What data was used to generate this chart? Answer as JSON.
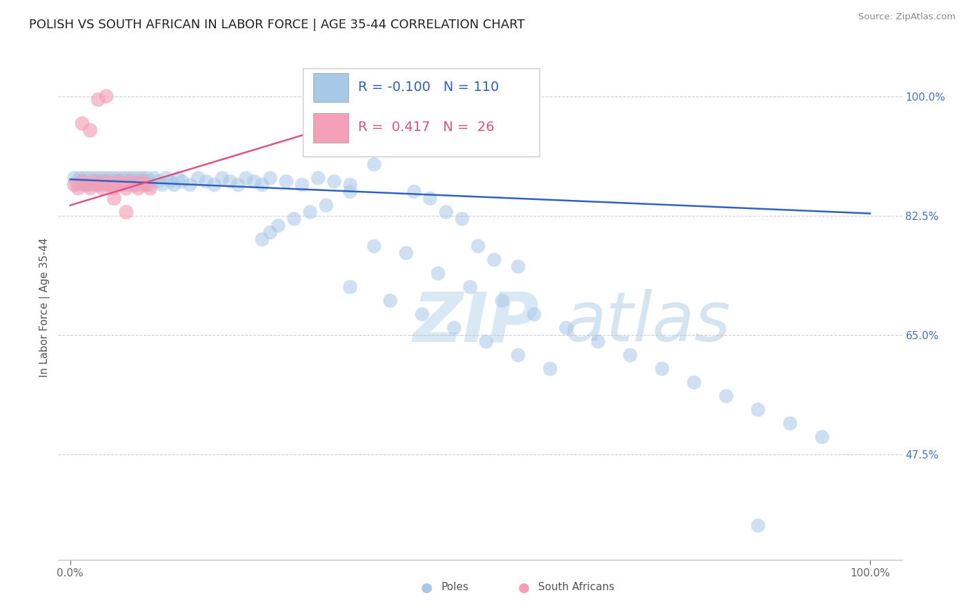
{
  "title": "POLISH VS SOUTH AFRICAN IN LABOR FORCE | AGE 35-44 CORRELATION CHART",
  "source": "Source: ZipAtlas.com",
  "ylabel": "In Labor Force | Age 35-44",
  "xlim": [
    -0.015,
    1.04
  ],
  "ylim": [
    0.32,
    1.06
  ],
  "right_yticks": [
    0.475,
    0.65,
    0.825,
    1.0
  ],
  "right_ytick_labels": [
    "47.5%",
    "65.0%",
    "82.5%",
    "100.0%"
  ],
  "xtick_positions": [
    0.0,
    1.0
  ],
  "xtick_labels": [
    "0.0%",
    "100.0%"
  ],
  "blue_R": -0.1,
  "blue_N": 110,
  "pink_R": 0.417,
  "pink_N": 26,
  "blue_color": "#a8c8e8",
  "pink_color": "#f4a0b8",
  "blue_line_color": "#3060c0",
  "pink_line_color": "#e0406080",
  "title_fontsize": 13,
  "tick_fontsize": 11,
  "legend_fontsize": 14,
  "ylabel_fontsize": 11,
  "background_color": "#ffffff",
  "grid_color": "#bbbbbb",
  "poles_x": [
    0.005,
    0.008,
    0.01,
    0.012,
    0.014,
    0.016,
    0.018,
    0.02,
    0.022,
    0.024,
    0.026,
    0.028,
    0.03,
    0.032,
    0.034,
    0.036,
    0.038,
    0.04,
    0.042,
    0.044,
    0.046,
    0.048,
    0.05,
    0.052,
    0.054,
    0.056,
    0.058,
    0.06,
    0.062,
    0.064,
    0.066,
    0.068,
    0.07,
    0.072,
    0.074,
    0.076,
    0.078,
    0.08,
    0.082,
    0.084,
    0.086,
    0.088,
    0.09,
    0.092,
    0.094,
    0.096,
    0.098,
    0.1,
    0.105,
    0.11,
    0.115,
    0.12,
    0.125,
    0.13,
    0.135,
    0.14,
    0.15,
    0.16,
    0.17,
    0.18,
    0.19,
    0.2,
    0.21,
    0.22,
    0.23,
    0.24,
    0.25,
    0.27,
    0.29,
    0.31,
    0.33,
    0.35,
    0.38,
    0.35,
    0.32,
    0.3,
    0.28,
    0.26,
    0.25,
    0.24,
    0.43,
    0.45,
    0.47,
    0.49,
    0.51,
    0.53,
    0.56,
    0.38,
    0.42,
    0.46,
    0.5,
    0.54,
    0.58,
    0.62,
    0.66,
    0.7,
    0.74,
    0.78,
    0.82,
    0.86,
    0.9,
    0.94,
    0.35,
    0.4,
    0.44,
    0.48,
    0.52,
    0.56,
    0.6,
    0.86
  ],
  "poles_y": [
    0.88,
    0.875,
    0.87,
    0.88,
    0.875,
    0.87,
    0.88,
    0.875,
    0.87,
    0.88,
    0.875,
    0.87,
    0.88,
    0.875,
    0.87,
    0.88,
    0.875,
    0.87,
    0.88,
    0.875,
    0.87,
    0.88,
    0.875,
    0.87,
    0.88,
    0.875,
    0.87,
    0.88,
    0.875,
    0.87,
    0.88,
    0.875,
    0.87,
    0.88,
    0.875,
    0.87,
    0.88,
    0.875,
    0.87,
    0.88,
    0.875,
    0.87,
    0.88,
    0.875,
    0.87,
    0.88,
    0.875,
    0.87,
    0.88,
    0.875,
    0.87,
    0.88,
    0.875,
    0.87,
    0.88,
    0.875,
    0.87,
    0.88,
    0.875,
    0.87,
    0.88,
    0.875,
    0.87,
    0.88,
    0.875,
    0.87,
    0.88,
    0.875,
    0.87,
    0.88,
    0.875,
    0.87,
    0.9,
    0.86,
    0.84,
    0.83,
    0.82,
    0.81,
    0.8,
    0.79,
    0.86,
    0.85,
    0.83,
    0.82,
    0.78,
    0.76,
    0.75,
    0.78,
    0.77,
    0.74,
    0.72,
    0.7,
    0.68,
    0.66,
    0.64,
    0.62,
    0.6,
    0.58,
    0.56,
    0.54,
    0.52,
    0.5,
    0.72,
    0.7,
    0.68,
    0.66,
    0.64,
    0.62,
    0.6,
    0.37
  ],
  "sa_x": [
    0.005,
    0.01,
    0.015,
    0.02,
    0.025,
    0.03,
    0.035,
    0.04,
    0.045,
    0.05,
    0.055,
    0.06,
    0.065,
    0.07,
    0.075,
    0.08,
    0.085,
    0.09,
    0.095,
    0.1,
    0.035,
    0.045,
    0.015,
    0.025,
    0.055,
    0.07
  ],
  "sa_y": [
    0.87,
    0.865,
    0.875,
    0.87,
    0.865,
    0.875,
    0.87,
    0.865,
    0.875,
    0.87,
    0.865,
    0.875,
    0.87,
    0.865,
    0.875,
    0.87,
    0.865,
    0.875,
    0.87,
    0.865,
    0.995,
    1.0,
    0.96,
    0.95,
    0.85,
    0.83
  ],
  "blue_trend_x": [
    0.0,
    1.0
  ],
  "blue_trend_y": [
    0.878,
    0.828
  ],
  "pink_trend_x": [
    0.0,
    0.48
  ],
  "pink_trend_y": [
    0.84,
    1.01
  ]
}
